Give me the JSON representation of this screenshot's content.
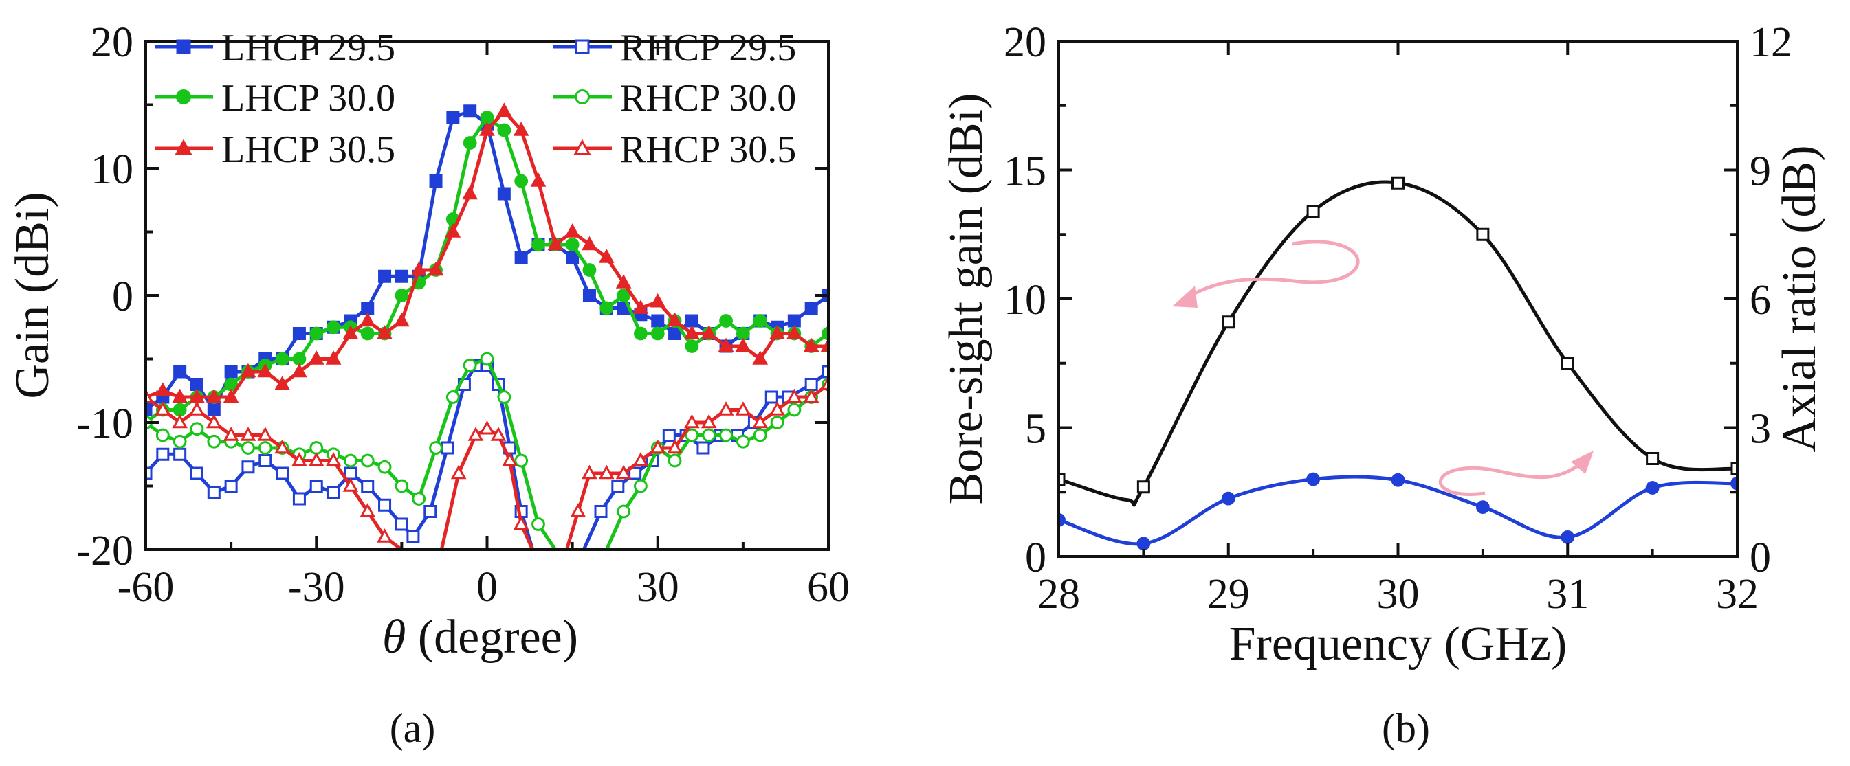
{
  "chart_data": [
    {
      "type": "line",
      "panel_label": "(a)",
      "xlabel_symbol": "θ",
      "xlabel": "(degree)",
      "ylabel": "Gain (dBi)",
      "xlim": [
        -60,
        60
      ],
      "ylim": [
        -20,
        20
      ],
      "xticks": [
        -60,
        -30,
        0,
        30,
        60
      ],
      "yticks": [
        -20,
        -10,
        0,
        10,
        20
      ],
      "grid": false,
      "legend_position": "top",
      "series": [
        {
          "name": "LHCP 29.5",
          "color": "#1f3fd6",
          "marker": "square-filled",
          "x": [
            -60,
            -57,
            -54,
            -51,
            -48,
            -45,
            -42,
            -39,
            -36,
            -33,
            -30,
            -27,
            -24,
            -21,
            -18,
            -15,
            -12,
            -9,
            -6,
            -3,
            0,
            3,
            6,
            9,
            12,
            15,
            18,
            21,
            24,
            27,
            30,
            33,
            36,
            39,
            42,
            45,
            48,
            51,
            54,
            57,
            60
          ],
          "y": [
            -9,
            -8,
            -6,
            -7,
            -9,
            -6,
            -6,
            -5,
            -5,
            -3,
            -3,
            -2.5,
            -2,
            -1,
            1.5,
            1.5,
            1.5,
            9,
            14,
            14.5,
            13.5,
            8,
            3,
            4,
            4,
            3,
            0,
            -1,
            -1,
            -1.5,
            -2,
            -3,
            -2,
            -3,
            -4,
            -3,
            -2,
            -2.5,
            -2,
            -1,
            0
          ]
        },
        {
          "name": "LHCP 30.0",
          "color": "#18c418",
          "marker": "circle-filled",
          "x": [
            -60,
            -57,
            -54,
            -51,
            -48,
            -45,
            -42,
            -39,
            -36,
            -33,
            -30,
            -27,
            -24,
            -21,
            -18,
            -15,
            -12,
            -9,
            -6,
            -3,
            0,
            3,
            6,
            9,
            12,
            15,
            18,
            21,
            24,
            27,
            30,
            33,
            36,
            39,
            42,
            45,
            48,
            51,
            54,
            57,
            60
          ],
          "y": [
            -10,
            -9,
            -9,
            -8,
            -8,
            -7,
            -6,
            -5.5,
            -5,
            -5,
            -3,
            -2.5,
            -2.5,
            -3,
            -3,
            0,
            1,
            2,
            6,
            12,
            14,
            13,
            9,
            4,
            4,
            4,
            2,
            -1,
            0,
            -3,
            -3,
            -2,
            -4,
            -3,
            -2,
            -3,
            -2,
            -3,
            -3,
            -4,
            -3
          ]
        },
        {
          "name": "LHCP 30.5",
          "color": "#e42525",
          "marker": "triangle-filled",
          "x": [
            -60,
            -57,
            -54,
            -51,
            -48,
            -45,
            -42,
            -39,
            -36,
            -33,
            -30,
            -27,
            -24,
            -21,
            -18,
            -15,
            -12,
            -9,
            -6,
            -3,
            0,
            3,
            6,
            9,
            12,
            15,
            18,
            21,
            24,
            27,
            30,
            33,
            36,
            39,
            42,
            45,
            48,
            51,
            54,
            57,
            60
          ],
          "y": [
            -8,
            -7.5,
            -8,
            -8,
            -8,
            -8,
            -6,
            -6,
            -7,
            -6,
            -5,
            -5,
            -3,
            -2,
            -3,
            -2,
            2,
            2,
            5,
            8,
            13,
            14.5,
            13,
            9,
            4,
            5,
            4,
            3,
            1,
            -1,
            -0.5,
            -2,
            -3,
            -3,
            -4,
            -4,
            -5,
            -3,
            -3,
            -4,
            -4
          ]
        },
        {
          "name": "RHCP 29.5",
          "color": "#1f3fd6",
          "marker": "square-open",
          "x": [
            -60,
            -57,
            -54,
            -51,
            -48,
            -45,
            -42,
            -39,
            -36,
            -33,
            -30,
            -27,
            -24,
            -21,
            -18,
            -15,
            -13,
            -10,
            -7,
            -4,
            -2,
            0,
            2,
            4,
            6,
            8,
            10,
            14,
            17,
            20,
            23,
            26,
            29,
            32,
            35,
            38,
            41,
            44,
            47,
            50,
            53,
            57,
            60
          ],
          "y": [
            -14,
            -12.5,
            -12.5,
            -14,
            -15.5,
            -15,
            -13.5,
            -13,
            -14,
            -16,
            -15,
            -15.5,
            -14,
            -15,
            -16.5,
            -18,
            -19,
            -17,
            -12,
            -7,
            -5.5,
            -5.5,
            -7,
            -12,
            -17,
            -20,
            -20,
            -20,
            -20,
            -17,
            -15,
            -14,
            -13,
            -11,
            -11,
            -12,
            -11,
            -11,
            -10,
            -8,
            -8,
            -7,
            -6
          ]
        },
        {
          "name": "RHCP 30.0",
          "color": "#18c418",
          "marker": "circle-open",
          "x": [
            -60,
            -57,
            -54,
            -51,
            -48,
            -45,
            -42,
            -39,
            -36,
            -33,
            -30,
            -27,
            -24,
            -21,
            -18,
            -15,
            -12,
            -9,
            -6,
            -3,
            0,
            3,
            6,
            9,
            12,
            21,
            24,
            27,
            30,
            33,
            36,
            39,
            42,
            45,
            48,
            51,
            54,
            57,
            60
          ],
          "y": [
            -10,
            -11,
            -11.5,
            -10.5,
            -11.5,
            -11.5,
            -12,
            -12,
            -12,
            -12.5,
            -12,
            -12.5,
            -13,
            -13,
            -13.5,
            -15,
            -16,
            -12,
            -8,
            -5.5,
            -5,
            -8,
            -13,
            -18,
            -20,
            -20,
            -17,
            -15,
            -12,
            -13,
            -11,
            -11,
            -11,
            -11.5,
            -11,
            -10,
            -9,
            -8,
            -7
          ]
        },
        {
          "name": "RHCP 30.5",
          "color": "#e42525",
          "marker": "triangle-open",
          "x": [
            -60,
            -57,
            -54,
            -51,
            -48,
            -45,
            -42,
            -39,
            -36,
            -33,
            -30,
            -27,
            -24,
            -21,
            -18,
            -15,
            -12,
            -10,
            -8,
            -5,
            -2,
            0,
            2,
            4,
            6,
            8,
            14,
            16,
            18,
            21,
            24,
            27,
            30,
            33,
            36,
            39,
            42,
            45,
            48,
            51,
            54,
            57,
            60
          ],
          "y": [
            -8,
            -9,
            -10,
            -9,
            -10,
            -11,
            -11,
            -11,
            -12,
            -13,
            -13,
            -13,
            -15,
            -17,
            -19,
            -20,
            -20,
            -20,
            -20,
            -14,
            -11,
            -10.5,
            -11,
            -13,
            -18,
            -20,
            -20,
            -17,
            -14,
            -14,
            -14,
            -13,
            -12,
            -12,
            -10,
            -10,
            -9,
            -9,
            -10,
            -9,
            -8,
            -8,
            -7
          ]
        }
      ]
    },
    {
      "type": "line",
      "panel_label": "(b)",
      "xlabel": "Frequency (GHz)",
      "ylabel": "Bore-sight gain (dBi)",
      "y2label": "Axial ratio (dB)",
      "xlim": [
        28,
        32
      ],
      "ylim": [
        0,
        20
      ],
      "y2lim": [
        0,
        12
      ],
      "xticks": [
        28,
        29,
        30,
        31,
        32
      ],
      "yticks": [
        0,
        5,
        10,
        15,
        20
      ],
      "y2ticks": [
        0,
        3,
        6,
        9,
        12
      ],
      "grid": false,
      "series": [
        {
          "axis": "left",
          "color": "#111111",
          "marker": "square-open",
          "x": [
            28,
            28.4,
            28.5,
            29,
            29.5,
            30,
            30.5,
            31,
            31.5,
            32
          ],
          "y": [
            3.0,
            2.2,
            2.7,
            9.1,
            13.4,
            14.5,
            12.5,
            7.5,
            3.8,
            3.4
          ],
          "marked_x": [
            28,
            28.5,
            29,
            29.5,
            30,
            30.5,
            31,
            31.5,
            32
          ]
        },
        {
          "axis": "right",
          "color": "#1f3fd6",
          "marker": "circle-filled",
          "x": [
            28,
            28.5,
            29,
            29.5,
            30,
            30.5,
            31,
            31.5,
            32
          ],
          "y": [
            0.85,
            0.3,
            1.35,
            1.8,
            1.78,
            1.15,
            0.45,
            1.6,
            1.7
          ]
        }
      ]
    }
  ]
}
